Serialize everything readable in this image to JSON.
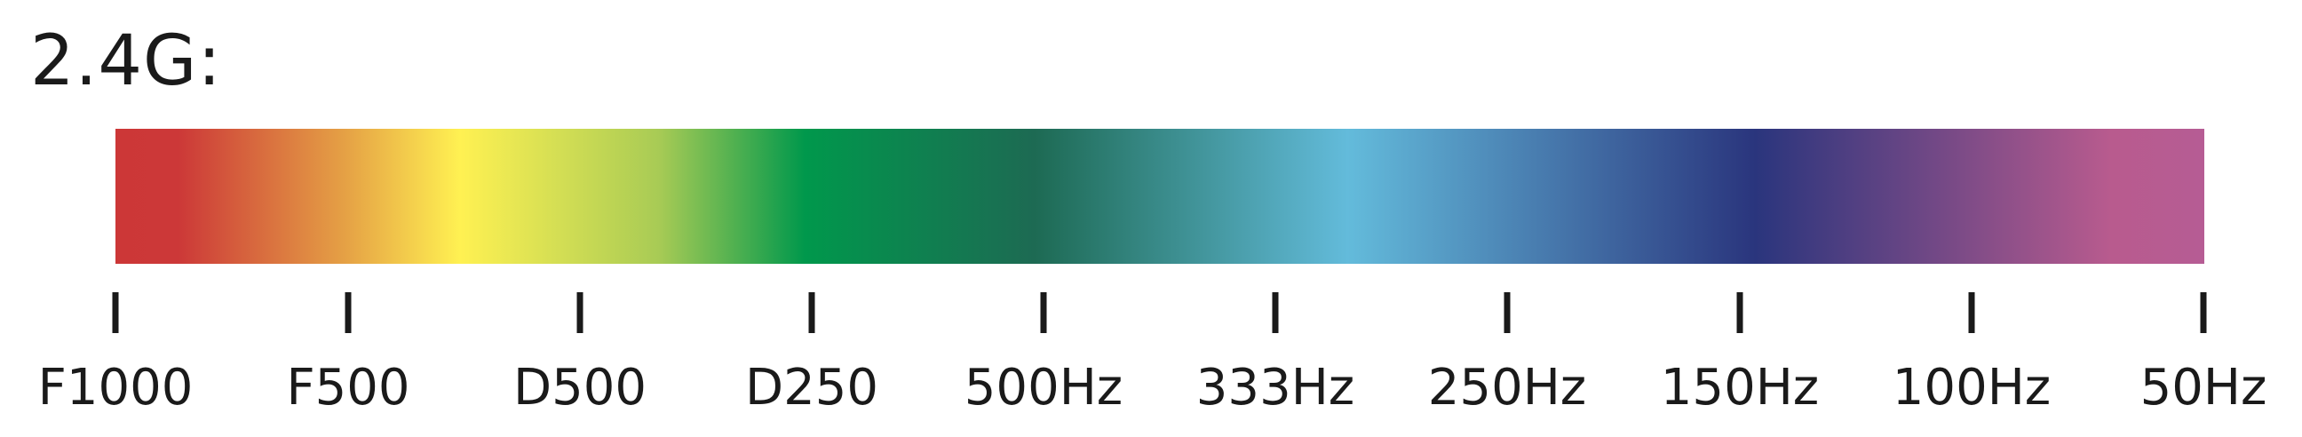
{
  "title": "2.4G:",
  "gradient_colors": [
    "#cc3737",
    "#cc3838",
    "#e5a145",
    "#fff152",
    "#a8cb55",
    "#00984c",
    "#1d6a53",
    "#63bbdb",
    "#2a357d",
    "#b85b8e",
    "#b65c94"
  ],
  "ticks": [
    {
      "label": "F1000"
    },
    {
      "label": "F500"
    },
    {
      "label": "D500"
    },
    {
      "label": "D250"
    },
    {
      "label": "500Hz"
    },
    {
      "label": "333Hz"
    },
    {
      "label": "250Hz"
    },
    {
      "label": "150Hz"
    },
    {
      "label": "100Hz"
    },
    {
      "label": "50Hz"
    }
  ]
}
